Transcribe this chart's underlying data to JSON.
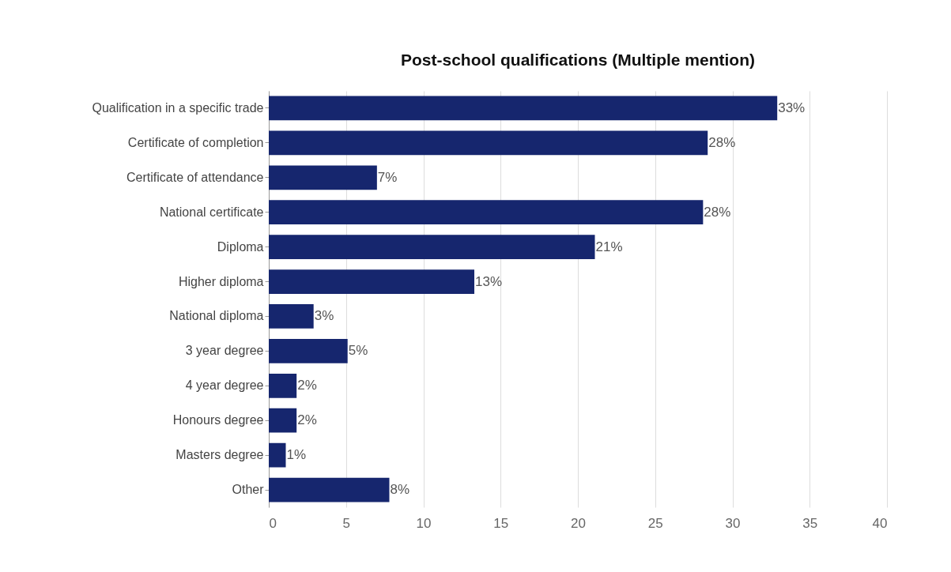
{
  "chart_data": {
    "type": "bar",
    "orientation": "horizontal",
    "title": "Post-school qualifications  (Multiple mention)",
    "categories": [
      "Qualification in a specific trade",
      "Certificate of completion",
      "Certificate of attendance",
      "National certificate",
      "Diploma",
      "Higher diploma",
      "National diploma",
      "3 year degree",
      "4 year degree",
      "Honours degree",
      "Masters degree",
      "Other"
    ],
    "values": [
      32.9,
      28.4,
      7.0,
      28.1,
      21.1,
      13.3,
      2.9,
      5.1,
      1.8,
      1.8,
      1.1,
      7.8
    ],
    "value_labels": [
      "33%",
      "28%",
      "7%",
      "28%",
      "21%",
      "13%",
      "3%",
      "5%",
      "2%",
      "2%",
      "1%",
      "8%"
    ],
    "color": "#16266e",
    "xlim": [
      0,
      40
    ],
    "xticks": [
      0,
      5,
      10,
      15,
      20,
      25,
      30,
      35,
      40
    ],
    "grid": "x"
  }
}
